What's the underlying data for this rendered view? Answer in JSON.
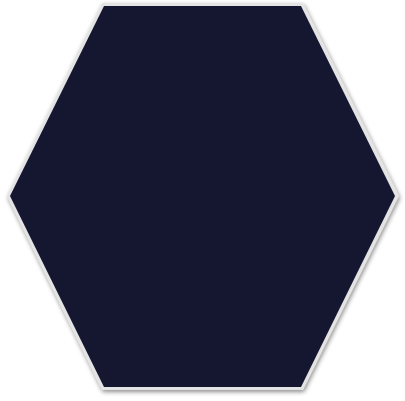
{
  "shape": {
    "kind": "hexagon",
    "fill_color": "#151630",
    "border_color": "#e4e4e4",
    "shadow_color": "#bfbfbf"
  }
}
